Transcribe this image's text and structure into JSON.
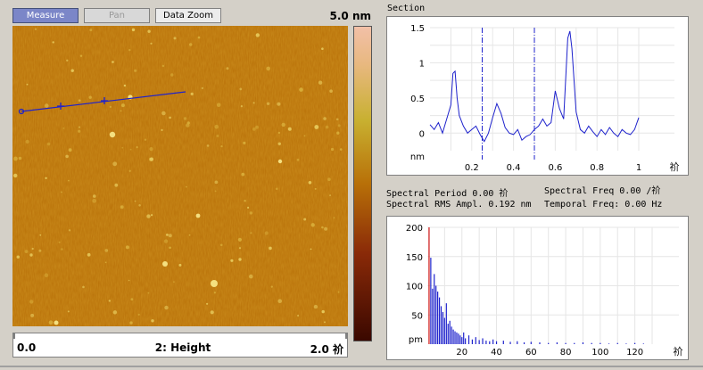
{
  "toolbar": {
    "measure_label": "Measure",
    "pan_label": "Pan",
    "data_zoom_label": "Data Zoom"
  },
  "image": {
    "scale_max_label": "5.0 nm",
    "x_min_label": "0.0",
    "channel_label": "2: Height",
    "x_max_label": "2.0 祄"
  },
  "section": {
    "title": "Section",
    "chart_data": {
      "type": "line",
      "title": "Section",
      "xlabel": "祄",
      "ylabel": "nm",
      "xlim": [
        0,
        1.0
      ],
      "ylim": [
        -0.25,
        1.5
      ],
      "x_ticks": [
        "0.2",
        "0.4",
        "0.6",
        "0.8",
        "1"
      ],
      "y_ticks": [
        "1.5",
        "1",
        "0.5",
        "0"
      ],
      "cursors_x": [
        0.25,
        0.5
      ],
      "x": [
        0.0,
        0.02,
        0.04,
        0.06,
        0.08,
        0.1,
        0.11,
        0.12,
        0.13,
        0.14,
        0.16,
        0.18,
        0.2,
        0.22,
        0.24,
        0.26,
        0.28,
        0.3,
        0.32,
        0.34,
        0.36,
        0.38,
        0.4,
        0.42,
        0.44,
        0.46,
        0.48,
        0.5,
        0.52,
        0.54,
        0.56,
        0.58,
        0.6,
        0.62,
        0.64,
        0.66,
        0.67,
        0.68,
        0.7,
        0.72,
        0.74,
        0.76,
        0.78,
        0.8,
        0.82,
        0.84,
        0.86,
        0.88,
        0.9,
        0.92,
        0.94,
        0.96,
        0.98,
        1.0
      ],
      "y": [
        0.12,
        0.05,
        0.15,
        0.0,
        0.2,
        0.4,
        0.85,
        0.88,
        0.5,
        0.25,
        0.1,
        0.0,
        0.05,
        0.1,
        -0.02,
        -0.12,
        0.0,
        0.22,
        0.42,
        0.28,
        0.08,
        0.0,
        -0.02,
        0.05,
        -0.1,
        -0.05,
        -0.02,
        0.05,
        0.1,
        0.2,
        0.1,
        0.15,
        0.6,
        0.35,
        0.2,
        1.35,
        1.45,
        1.2,
        0.3,
        0.05,
        0.0,
        0.1,
        0.02,
        -0.05,
        0.05,
        -0.02,
        0.08,
        0.0,
        -0.05,
        0.05,
        0.0,
        -0.02,
        0.05,
        0.22
      ]
    }
  },
  "stats": {
    "spectral_period": "Spectral Period 0.00 祄",
    "spectral_freq": "Spectral Freq 0.00 /祄",
    "spectral_rms": "Spectral RMS Ampl. 0.192 nm",
    "temporal_freq": "Temporal Freq: 0.00 Hz"
  },
  "spectrum": {
    "chart_data": {
      "type": "bar",
      "xlabel": "祄",
      "ylabel": "pm",
      "xlim": [
        0,
        130
      ],
      "ylim": [
        0,
        200
      ],
      "x_ticks": [
        "20",
        "40",
        "60",
        "80",
        "100",
        "120"
      ],
      "y_ticks": [
        "200",
        "150",
        "100",
        "50"
      ],
      "x": [
        1,
        2,
        3,
        4,
        5,
        6,
        7,
        8,
        9,
        10,
        11,
        12,
        13,
        14,
        15,
        16,
        17,
        18,
        19,
        20,
        21,
        22,
        24,
        26,
        28,
        30,
        32,
        34,
        36,
        38,
        40,
        44,
        48,
        52,
        56,
        60,
        65,
        70,
        75,
        80,
        85,
        90,
        95,
        100,
        105,
        110,
        115,
        120,
        125
      ],
      "values": [
        200,
        148,
        95,
        120,
        100,
        90,
        80,
        65,
        55,
        45,
        70,
        35,
        40,
        30,
        25,
        22,
        20,
        18,
        15,
        12,
        20,
        10,
        15,
        8,
        12,
        7,
        10,
        6,
        5,
        8,
        5,
        6,
        4,
        5,
        3,
        4,
        3,
        2,
        3,
        2,
        2,
        3,
        2,
        2,
        1,
        2,
        1,
        2,
        1
      ]
    }
  }
}
